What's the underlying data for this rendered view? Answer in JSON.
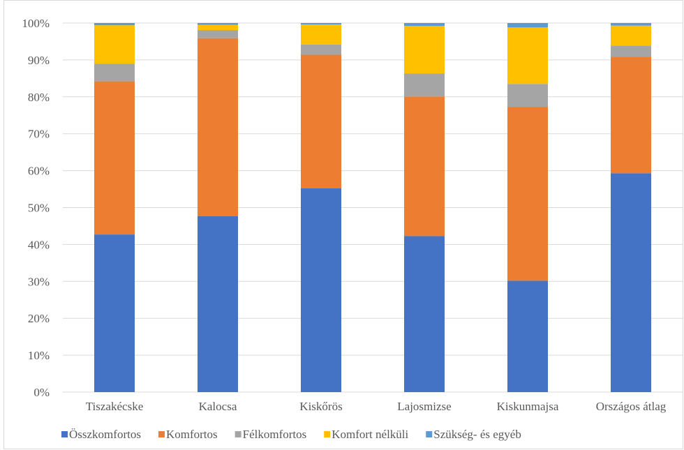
{
  "chart_data": {
    "type": "bar",
    "stacked": true,
    "normalized": true,
    "categories": [
      "Tiszakécske",
      "Kalocsa",
      "Kiskőrös",
      "Lajosmizse",
      "Kiskunmajsa",
      "Országos átlag"
    ],
    "series": [
      {
        "name": "Összkomfortos",
        "color": "#4472C4",
        "values": [
          42.7,
          47.7,
          55.2,
          42.3,
          30.2,
          59.3
        ]
      },
      {
        "name": "Komfortos",
        "color": "#ED7D31",
        "values": [
          41.5,
          48.2,
          36.2,
          37.8,
          47.1,
          31.6
        ]
      },
      {
        "name": "Félkomfortos",
        "color": "#A5A5A5",
        "values": [
          4.8,
          2.2,
          2.8,
          6.2,
          6.2,
          3.0
        ]
      },
      {
        "name": "Komfort nélküli",
        "color": "#FFC000",
        "values": [
          10.4,
          1.4,
          5.4,
          12.9,
          15.3,
          5.4
        ]
      },
      {
        "name": "Szükség- és egyéb",
        "color": "#5B9BD5",
        "values": [
          0.6,
          0.5,
          0.4,
          0.8,
          1.2,
          0.7
        ]
      }
    ],
    "yticks": [
      "0%",
      "10%",
      "20%",
      "30%",
      "40%",
      "50%",
      "60%",
      "70%",
      "80%",
      "90%",
      "100%"
    ],
    "ylim": [
      0,
      100
    ],
    "grid": true,
    "legend": "bottom"
  }
}
